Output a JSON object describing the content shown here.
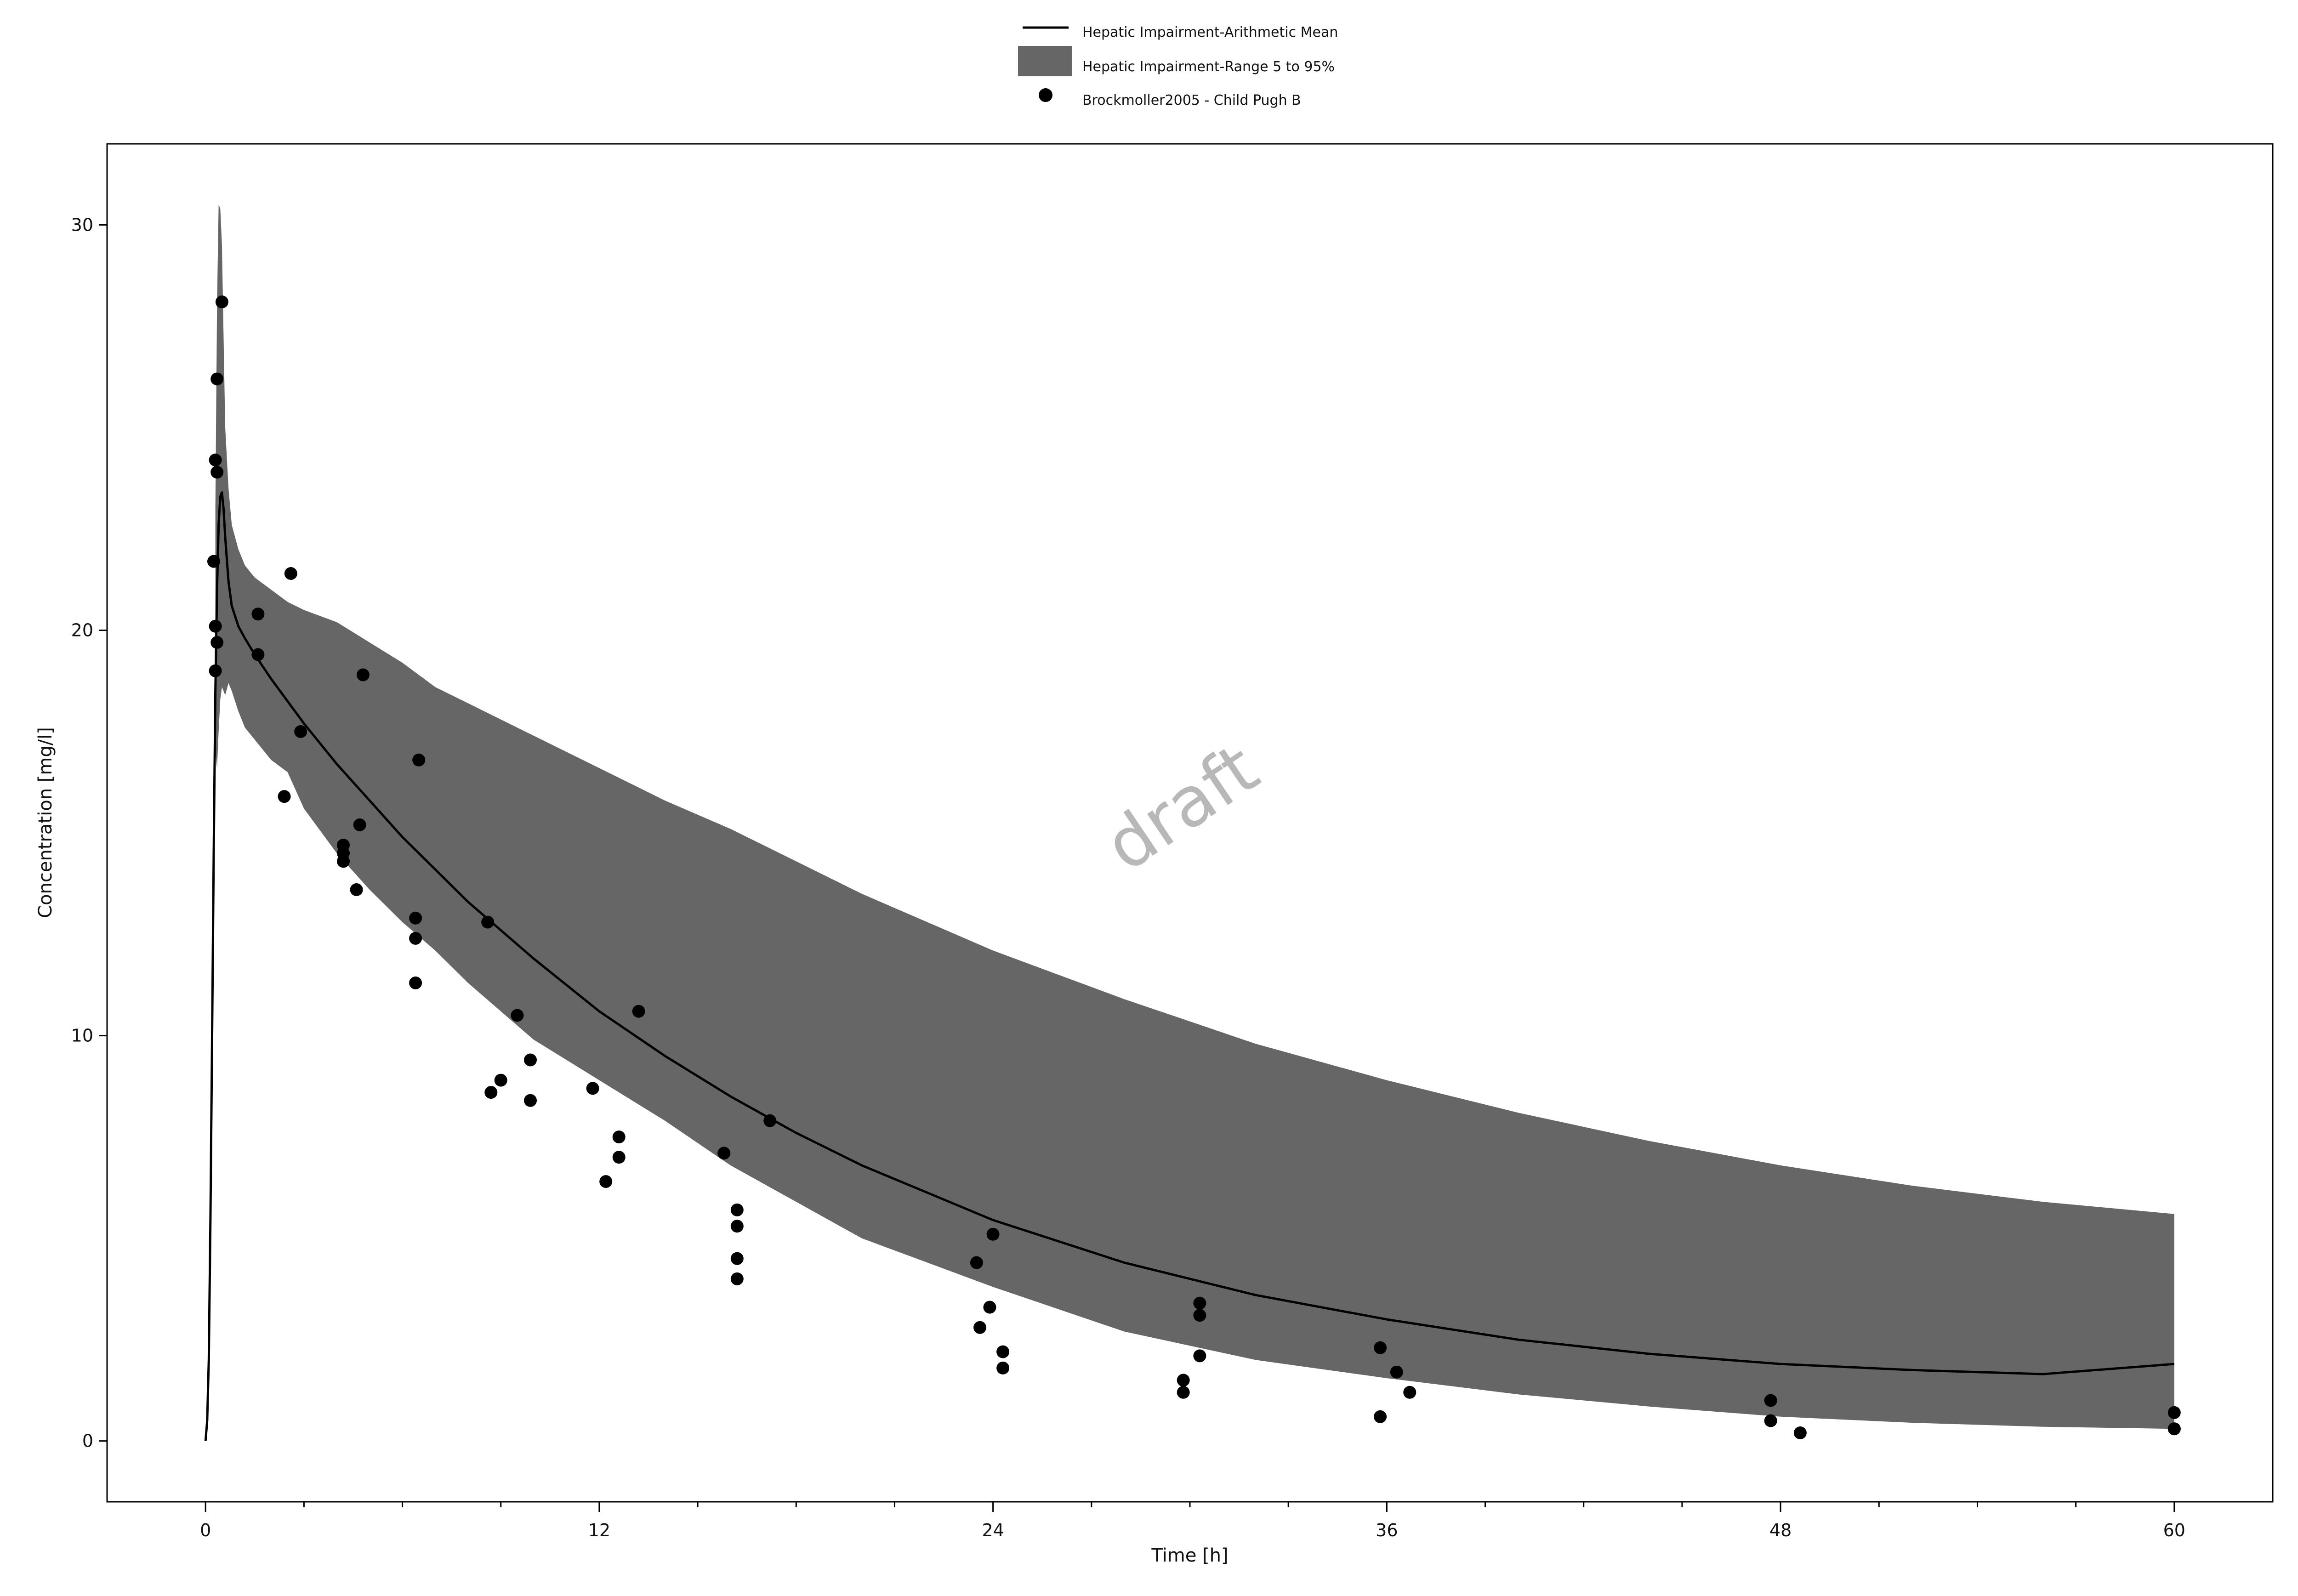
{
  "chart_data": {
    "type": "line",
    "xlabel": "Time [h]",
    "ylabel": "Concentration [mg/l]",
    "xlim": [
      -3,
      63
    ],
    "ylim": [
      -1.5,
      32
    ],
    "xticks": [
      0,
      12,
      24,
      36,
      48,
      60
    ],
    "yticks": [
      0,
      10,
      20,
      30
    ],
    "watermark": "draft",
    "legend": {
      "position": "top-center",
      "entries": [
        {
          "label": "Hepatic Impairment-Arithmetic Mean",
          "kind": "line"
        },
        {
          "label": "Hepatic Impairment-Range 5 to 95%",
          "kind": "band"
        },
        {
          "label": "Brockmoller2005 - Child Pugh B",
          "kind": "marker"
        }
      ]
    },
    "colors": {
      "line": "#000000",
      "band": "#666666",
      "marker": "#000000"
    },
    "series": [
      {
        "name": "Hepatic Impairment-Arithmetic Mean",
        "x": [
          0,
          0.05,
          0.1,
          0.15,
          0.2,
          0.25,
          0.3,
          0.35,
          0.4,
          0.45,
          0.5,
          0.55,
          0.6,
          0.7,
          0.8,
          1.0,
          1.2,
          1.5,
          2,
          3,
          4,
          5,
          6,
          7,
          8,
          10,
          12,
          14,
          16,
          18,
          20,
          24,
          28,
          32,
          36,
          40,
          44,
          48,
          52,
          56,
          60
        ],
        "y": [
          0,
          0.5,
          2,
          5.5,
          10,
          14.5,
          18.5,
          21,
          22.6,
          23.3,
          23.4,
          23,
          22.3,
          21.2,
          20.6,
          20.1,
          19.8,
          19.4,
          18.8,
          17.7,
          16.7,
          15.8,
          14.9,
          14.1,
          13.3,
          11.9,
          10.6,
          9.5,
          8.5,
          7.6,
          6.8,
          5.45,
          4.4,
          3.6,
          3.0,
          2.5,
          2.15,
          1.9,
          1.75,
          1.65,
          1.9
        ]
      },
      {
        "name": "Hepatic Impairment-Range 5 to 95%",
        "x": [
          0.3,
          0.35,
          0.4,
          0.45,
          0.5,
          0.6,
          0.7,
          0.8,
          1.0,
          1.2,
          1.5,
          2,
          2.5,
          3,
          4,
          5,
          6,
          7,
          8,
          10,
          12,
          14,
          16,
          18,
          20,
          24,
          28,
          32,
          36,
          40,
          44,
          48,
          52,
          56,
          60
        ],
        "upper": [
          23,
          28,
          30.5,
          30.4,
          29.5,
          25,
          23.5,
          22.6,
          22,
          21.6,
          21.3,
          21,
          20.7,
          20.5,
          20.2,
          19.7,
          19.2,
          18.6,
          18.2,
          17.4,
          16.6,
          15.8,
          15.1,
          14.3,
          13.5,
          12.1,
          10.9,
          9.8,
          8.9,
          8.1,
          7.4,
          6.8,
          6.3,
          5.9,
          5.6
        ],
        "lower": [
          17,
          16.6,
          17.5,
          18.3,
          18.6,
          18.4,
          18.7,
          18.5,
          18.0,
          17.6,
          17.3,
          16.8,
          16.5,
          15.6,
          14.5,
          13.6,
          12.8,
          12.1,
          11.3,
          9.9,
          8.9,
          7.9,
          6.8,
          5.9,
          5.0,
          3.8,
          2.7,
          2.0,
          1.55,
          1.15,
          0.85,
          0.6,
          0.45,
          0.35,
          0.3
        ]
      },
      {
        "name": "Brockmoller2005 - Child Pugh B",
        "x": [
          0.25,
          0.3,
          0.35,
          0.35,
          0.3,
          0.35,
          0.3,
          0.5,
          1.6,
          1.6,
          2.4,
          2.6,
          2.9,
          4.2,
          4.2,
          4.2,
          4.6,
          4.7,
          4.8,
          6.4,
          6.4,
          6.4,
          6.5,
          8.6,
          8.7,
          9.0,
          9.5,
          9.9,
          9.9,
          11.8,
          12.2,
          12.6,
          12.6,
          13.2,
          15.8,
          16.2,
          16.2,
          16.2,
          16.2,
          17.2,
          23.5,
          23.6,
          23.9,
          24.0,
          24.3,
          24.3,
          29.8,
          29.8,
          30.3,
          30.3,
          30.3,
          35.8,
          35.8,
          36.3,
          36.7,
          47.7,
          47.7,
          48.6,
          60.0,
          60.0,
          60.0
        ],
        "y": [
          21.7,
          24.2,
          23.9,
          26.2,
          20.1,
          19.7,
          19.0,
          28.1,
          20.4,
          19.4,
          15.9,
          21.4,
          17.5,
          14.7,
          14.5,
          14.3,
          13.6,
          15.2,
          18.9,
          12.9,
          12.4,
          11.3,
          16.8,
          12.8,
          8.6,
          8.9,
          10.5,
          9.4,
          8.4,
          8.7,
          6.4,
          7.5,
          7.0,
          10.6,
          7.1,
          5.7,
          5.3,
          4.5,
          4.0,
          7.9,
          4.4,
          2.8,
          3.3,
          5.1,
          2.2,
          1.8,
          1.5,
          1.2,
          3.4,
          3.1,
          2.1,
          2.3,
          0.6,
          1.7,
          1.2,
          1.0,
          0.5,
          0.2,
          0.7,
          0.3,
          0.3
        ]
      }
    ]
  }
}
